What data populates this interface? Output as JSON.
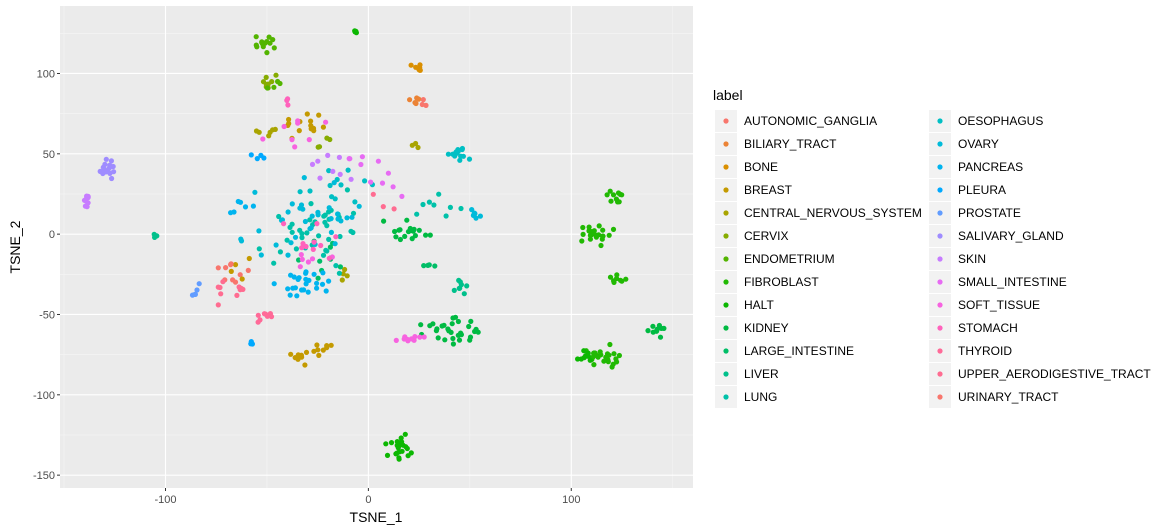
{
  "chart_data": {
    "type": "scatter",
    "xlabel": "TSNE_1",
    "ylabel": "TSNE_2",
    "xlim": [
      -152,
      160
    ],
    "ylim": [
      -158,
      142
    ],
    "x_ticks": [
      -100,
      0,
      100
    ],
    "y_ticks": [
      -150,
      -100,
      -50,
      0,
      50,
      100
    ],
    "grid": true,
    "legend": {
      "title": "label",
      "placement": "right"
    },
    "series": [
      {
        "name": "AUTONOMIC_GANGLIA",
        "color": "#F8766D",
        "clusters": [
          [
            -65,
            -28,
            4,
            5,
            5
          ]
        ]
      },
      {
        "name": "BILIARY_TRACT",
        "color": "#EB8335",
        "clusters": [
          [
            23,
            83,
            3,
            2,
            5
          ]
        ]
      },
      {
        "name": "BONE",
        "color": "#DA8F00",
        "clusters": [
          [
            23,
            104,
            2,
            2,
            8
          ]
        ]
      },
      {
        "name": "BREAST",
        "color": "#C49A00",
        "clusters": [
          [
            -32,
            70,
            7,
            6,
            14
          ],
          [
            -34,
            -76,
            4,
            4,
            8
          ],
          [
            -22,
            -70,
            4,
            3,
            8
          ],
          [
            -62,
            -20,
            5,
            4,
            4
          ]
        ]
      },
      {
        "name": "CENTRAL_NERVOUS_SYSTEM",
        "color": "#A9A400",
        "clusters": [
          [
            -50,
            64,
            4,
            3,
            6
          ],
          [
            -12,
            -26,
            4,
            3,
            4
          ],
          [
            22,
            55,
            3,
            2,
            3
          ]
        ]
      },
      {
        "name": "CERVIX",
        "color": "#86AC00",
        "clusters": [
          [
            -50,
            95,
            3,
            3,
            8
          ],
          [
            -25,
            55,
            5,
            4,
            4
          ]
        ]
      },
      {
        "name": "ENDOMETRIUM",
        "color": "#53B400",
        "clusters": [
          [
            -53,
            118,
            5,
            5,
            14
          ],
          [
            -47,
            93,
            3,
            3,
            4
          ]
        ]
      },
      {
        "name": "FIBROBLAST",
        "color": "#21B903",
        "clusters": [
          [
            112,
            0,
            5,
            4,
            22
          ],
          [
            123,
            -27,
            3,
            3,
            8
          ],
          [
            122,
            22,
            3,
            3,
            10
          ],
          [
            115,
            -76,
            7,
            4,
            24
          ]
        ]
      },
      {
        "name": "HALT",
        "color": "#0CB702",
        "clusters": [
          [
            15,
            -133,
            5,
            5,
            22
          ],
          [
            -6,
            126,
            1,
            2,
            4
          ],
          [
            106,
            -75,
            3,
            3,
            10
          ]
        ]
      },
      {
        "name": "KIDNEY",
        "color": "#00BA42",
        "clusters": [
          [
            42,
            -60,
            9,
            6,
            30
          ],
          [
            142,
            -60,
            3,
            3,
            10
          ],
          [
            20,
            3,
            7,
            6,
            18
          ]
        ]
      },
      {
        "name": "LARGE_INTESTINE",
        "color": "#00BE67",
        "clusters": [
          [
            -20,
            -15,
            10,
            10,
            10
          ],
          [
            30,
            -20,
            5,
            3,
            4
          ]
        ]
      },
      {
        "name": "LIVER",
        "color": "#00C08B",
        "clusters": [
          [
            46,
            -32,
            3,
            4,
            8
          ],
          [
            -105,
            -2,
            1,
            1,
            3
          ]
        ]
      },
      {
        "name": "LUNG",
        "color": "#00C1A9",
        "clusters": [
          [
            -25,
            0,
            15,
            15,
            40
          ],
          [
            35,
            20,
            10,
            8,
            8
          ]
        ]
      },
      {
        "name": "OESOPHAGUS",
        "color": "#00BFC4",
        "clusters": [
          [
            42,
            50,
            5,
            3,
            14
          ],
          [
            -10,
            30,
            15,
            10,
            12
          ]
        ]
      },
      {
        "name": "OVARY",
        "color": "#00BBDA",
        "clusters": [
          [
            -30,
            10,
            20,
            15,
            35
          ],
          [
            53,
            13,
            2,
            2,
            6
          ]
        ]
      },
      {
        "name": "PANCREAS",
        "color": "#00B4EF",
        "clusters": [
          [
            -30,
            -30,
            10,
            6,
            25
          ],
          [
            -60,
            20,
            8,
            6,
            6
          ]
        ]
      },
      {
        "name": "PLEURA",
        "color": "#00A9FF",
        "clusters": [
          [
            -55,
            48,
            3,
            2,
            4
          ],
          [
            -58,
            -68,
            2,
            1,
            3
          ]
        ]
      },
      {
        "name": "PROSTATE",
        "color": "#619CFF",
        "clusters": [
          [
            -85,
            -35,
            4,
            3,
            5
          ]
        ]
      },
      {
        "name": "SALIVARY_GLAND",
        "color": "#9F8CFF",
        "clusters": [
          [
            -128,
            40,
            4,
            4,
            16
          ]
        ]
      },
      {
        "name": "SKIN",
        "color": "#C77CFF",
        "clusters": [
          [
            -138,
            22,
            3,
            3,
            10
          ],
          [
            -20,
            40,
            8,
            8,
            8
          ]
        ]
      },
      {
        "name": "SMALL_INTESTINE",
        "color": "#E76BF3",
        "clusters": [
          [
            0,
            40,
            15,
            15,
            10
          ]
        ]
      },
      {
        "name": "SOFT_TISSUE",
        "color": "#F763E0",
        "clusters": [
          [
            20,
            -65,
            7,
            3,
            10
          ],
          [
            -40,
            60,
            10,
            10,
            8
          ],
          [
            -30,
            -15,
            10,
            8,
            6
          ]
        ]
      },
      {
        "name": "STOMACH",
        "color": "#FF62BC",
        "clusters": [
          [
            -40,
            82,
            3,
            2,
            3
          ],
          [
            -30,
            -5,
            12,
            10,
            10
          ]
        ]
      },
      {
        "name": "THYROID",
        "color": "#FF6A98",
        "clusters": [
          [
            -52,
            -52,
            3,
            3,
            8
          ]
        ]
      },
      {
        "name": "UPPER_AERODIGESTIVE_TRACT",
        "color": "#FF6C91",
        "clusters": [
          [
            -70,
            -35,
            6,
            5,
            10
          ],
          [
            10,
            20,
            5,
            5,
            3
          ]
        ]
      },
      {
        "name": "URINARY_TRACT",
        "color": "#F8766D",
        "clusters": [
          [
            28,
            82,
            2,
            2,
            3
          ],
          [
            -68,
            -20,
            4,
            4,
            4
          ]
        ]
      }
    ]
  }
}
